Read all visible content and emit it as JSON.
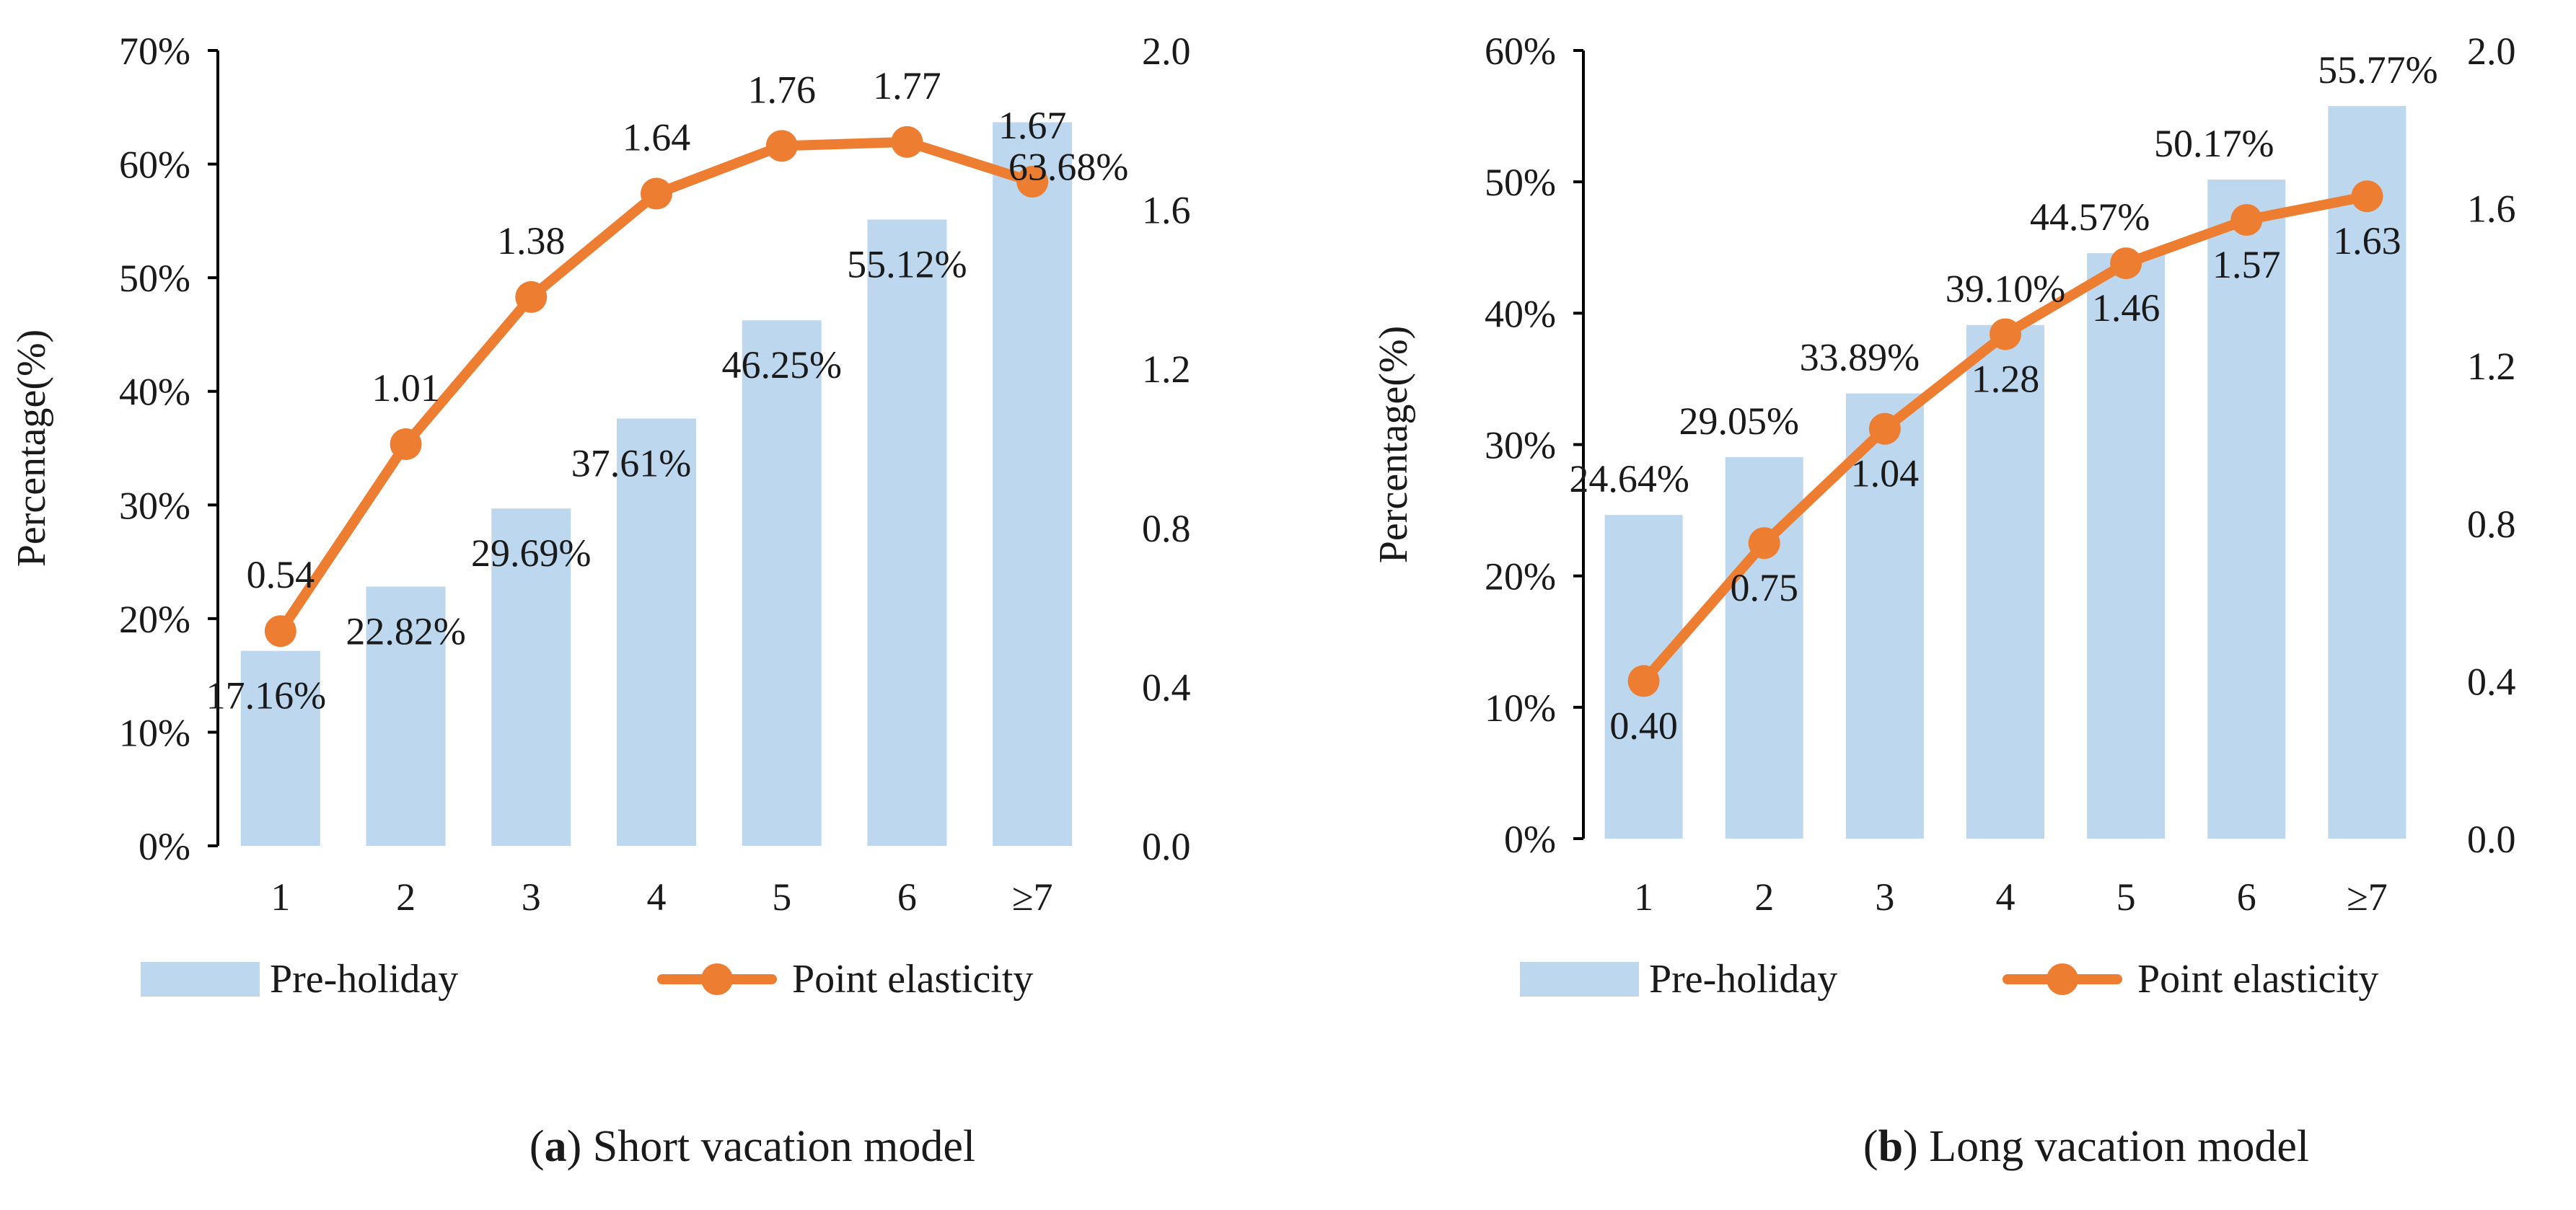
{
  "chart_data": [
    {
      "type": "bar+line",
      "panel_letter": "a",
      "caption": "Short vacation model",
      "categories": [
        "1",
        "2",
        "3",
        "4",
        "5",
        "6",
        "≥7"
      ],
      "ylabel": "Percentage(%)",
      "ylim": [
        0,
        70
      ],
      "ytick_labels": [
        "0%",
        "10%",
        "20%",
        "30%",
        "40%",
        "50%",
        "60%",
        "70%"
      ],
      "y2lim": [
        0,
        2.0
      ],
      "y2tick_labels": [
        "0.0",
        "0.4",
        "0.8",
        "1.2",
        "1.6",
        "2.0"
      ],
      "series": [
        {
          "name": "Pre-holiday",
          "kind": "bar",
          "axis": "left",
          "color": "#bdd7ee",
          "values": [
            17.16,
            22.82,
            29.69,
            37.61,
            46.25,
            55.12,
            63.68
          ],
          "labels": [
            "17.16%",
            "22.82%",
            "29.69%",
            "37.61%",
            "46.25%",
            "55.12%",
            "63.68%"
          ]
        },
        {
          "name": "Point elasticity",
          "kind": "line",
          "axis": "right",
          "color": "#ed7d31",
          "values": [
            0.54,
            1.01,
            1.38,
            1.64,
            1.76,
            1.77,
            1.67
          ],
          "labels": [
            "0.54",
            "1.01",
            "1.38",
            "1.64",
            "1.76",
            "1.77",
            "1.67"
          ]
        }
      ],
      "legend": "bottom",
      "grid": false
    },
    {
      "type": "bar+line",
      "panel_letter": "b",
      "caption": "Long vacation model",
      "categories": [
        "1",
        "2",
        "3",
        "4",
        "5",
        "6",
        "≥7"
      ],
      "ylabel": "Percentage(%)",
      "ylim": [
        0,
        60
      ],
      "ytick_labels": [
        "0%",
        "10%",
        "20%",
        "30%",
        "40%",
        "50%",
        "60%"
      ],
      "y2lim": [
        0,
        2.0
      ],
      "y2tick_labels": [
        "0.0",
        "0.4",
        "0.8",
        "1.2",
        "1.6",
        "2.0"
      ],
      "series": [
        {
          "name": "Pre-holiday",
          "kind": "bar",
          "axis": "left",
          "color": "#bdd7ee",
          "values": [
            24.64,
            29.05,
            33.89,
            39.1,
            44.57,
            50.17,
            55.77
          ],
          "labels": [
            "24.64%",
            "29.05%",
            "33.89%",
            "39.10%",
            "44.57%",
            "50.17%",
            "55.77%"
          ]
        },
        {
          "name": "Point elasticity",
          "kind": "line",
          "axis": "right",
          "color": "#ed7d31",
          "values": [
            0.4,
            0.75,
            1.04,
            1.28,
            1.46,
            1.57,
            1.63
          ],
          "labels": [
            "0.40",
            "0.75",
            "1.04",
            "1.28",
            "1.46",
            "1.57",
            "1.63"
          ]
        }
      ],
      "legend": "bottom",
      "grid": false
    }
  ]
}
